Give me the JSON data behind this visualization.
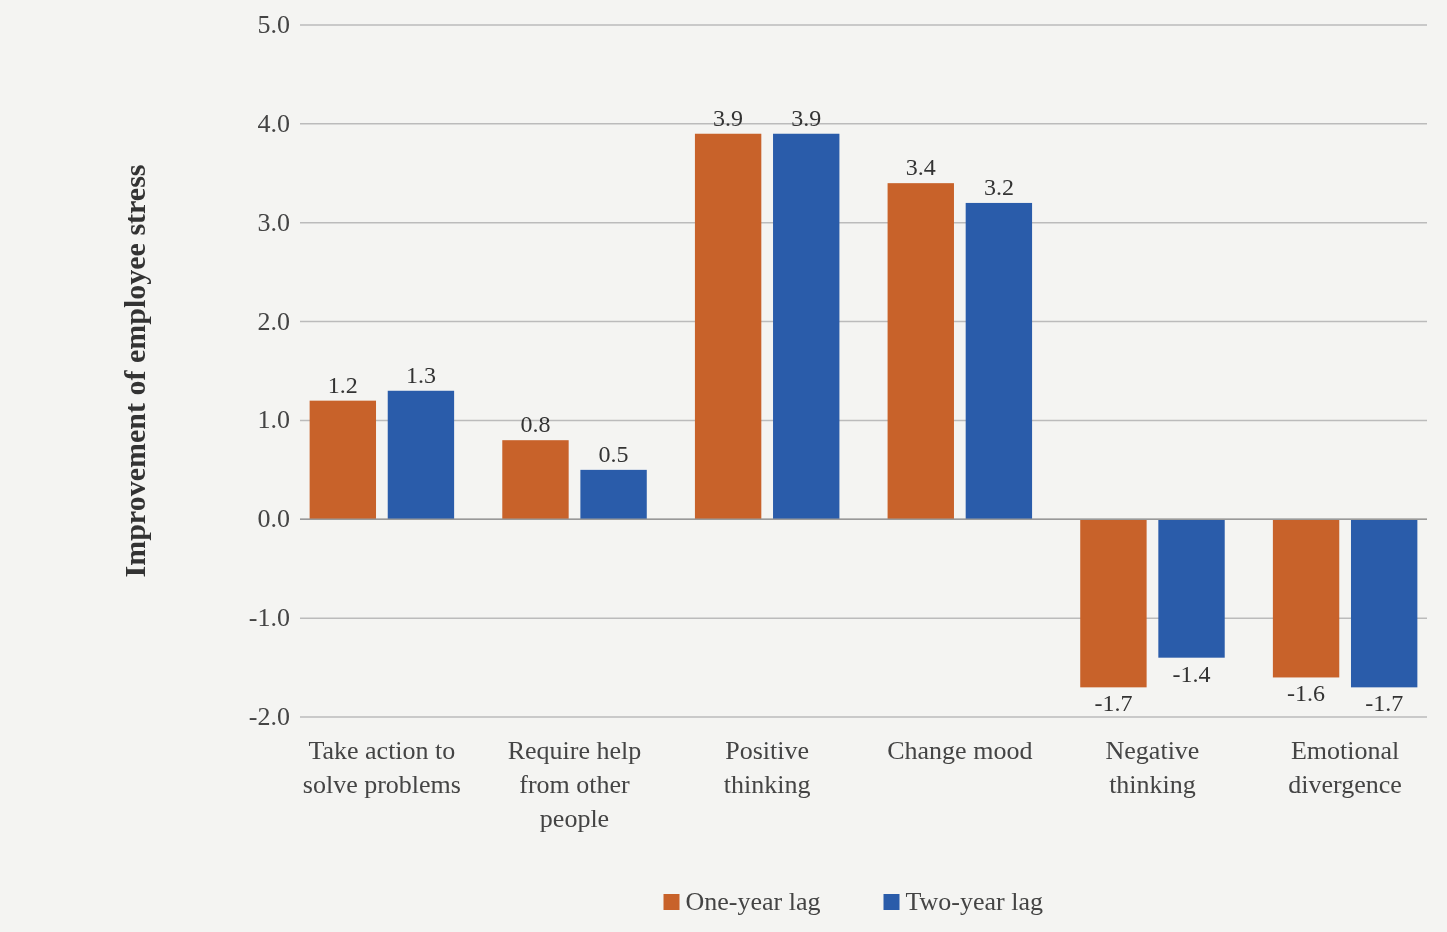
{
  "chart_data": {
    "type": "bar",
    "ylabel": "Improvement of employee stress",
    "categories": [
      "Take action to solve problems",
      "Require help from other people",
      "Positive thinking",
      "Change mood",
      "Negative thinking",
      "Emotional divergence"
    ],
    "series": [
      {
        "name": "One-year lag",
        "color": "#c8622a",
        "values": [
          1.2,
          0.8,
          3.9,
          3.4,
          -1.7,
          -1.6
        ]
      },
      {
        "name": "Two-year lag",
        "color": "#2a5caa",
        "values": [
          1.3,
          0.5,
          3.9,
          3.2,
          -1.4,
          -1.7
        ]
      }
    ],
    "ylim": [
      -2,
      5
    ],
    "yticks": [
      {
        "value": -2,
        "label": "-2.0"
      },
      {
        "value": -1,
        "label": "-1.0"
      },
      {
        "value": 0,
        "label": "0.0"
      },
      {
        "value": 1,
        "label": "1.0"
      },
      {
        "value": 2,
        "label": "2.0"
      },
      {
        "value": 3,
        "label": "3.0"
      },
      {
        "value": 4,
        "label": "4.0"
      },
      {
        "value": 5,
        "label": "5.0"
      }
    ],
    "grid": "y",
    "legend": "bottom",
    "data_labels": true
  }
}
